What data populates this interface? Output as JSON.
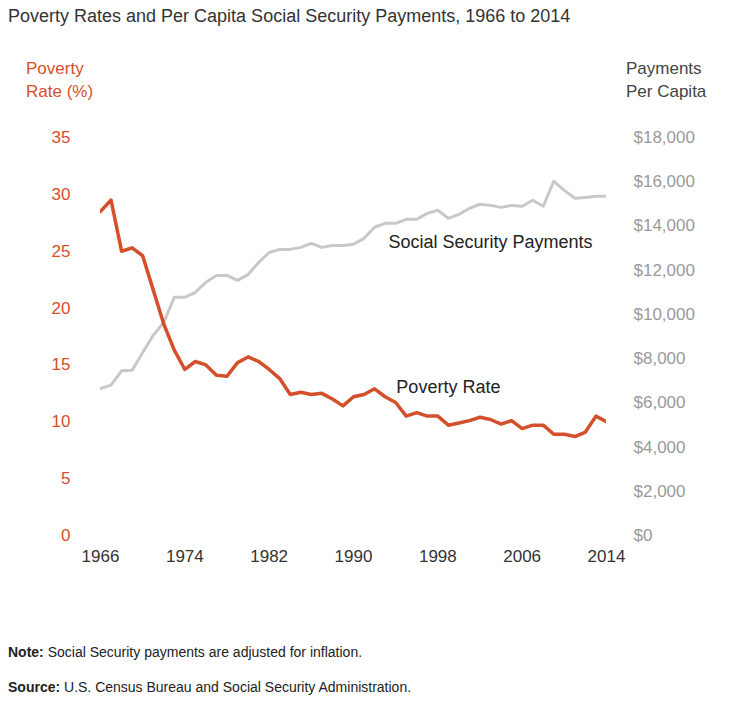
{
  "chart_data": {
    "type": "line",
    "title": "Poverty Rates and Per Capita Social Security Payments, 1966 to 2014",
    "x": [
      1966,
      1967,
      1968,
      1969,
      1970,
      1971,
      1972,
      1973,
      1974,
      1975,
      1976,
      1977,
      1978,
      1979,
      1980,
      1981,
      1982,
      1983,
      1984,
      1985,
      1986,
      1987,
      1988,
      1989,
      1990,
      1991,
      1992,
      1993,
      1994,
      1995,
      1996,
      1997,
      1998,
      1999,
      2000,
      2001,
      2002,
      2003,
      2004,
      2005,
      2006,
      2007,
      2008,
      2009,
      2010,
      2011,
      2012,
      2013,
      2014
    ],
    "xlim": [
      1966,
      2014
    ],
    "xticks": [
      1966,
      1974,
      1982,
      1990,
      1998,
      2006,
      2014
    ],
    "ylabel": "Poverty Rate (%)",
    "ylim": [
      0,
      35
    ],
    "yticks": [
      0,
      5,
      10,
      15,
      20,
      25,
      30,
      35
    ],
    "y2label": "Payments Per Capita",
    "y2lim": [
      0,
      18000
    ],
    "y2ticks": [
      {
        "value": 0,
        "label": "$0"
      },
      {
        "value": 2000,
        "label": "$2,000"
      },
      {
        "value": 4000,
        "label": "$4,000"
      },
      {
        "value": 6000,
        "label": "$6,000"
      },
      {
        "value": 8000,
        "label": "$8,000"
      },
      {
        "value": 10000,
        "label": "$10,000"
      },
      {
        "value": 12000,
        "label": "$12,000"
      },
      {
        "value": 14000,
        "label": "$14,000"
      },
      {
        "value": 16000,
        "label": "$16,000"
      },
      {
        "value": 18000,
        "label": "$18,000"
      }
    ],
    "grid": false,
    "series": [
      {
        "name": "Social Security Payments",
        "color": "#c8c8c8",
        "axis": "y2",
        "values": [
          6650,
          6800,
          7450,
          7470,
          8280,
          9050,
          9640,
          10770,
          10770,
          11000,
          11450,
          11760,
          11760,
          11540,
          11800,
          12350,
          12800,
          12940,
          12940,
          13030,
          13210,
          13030,
          13120,
          13120,
          13170,
          13440,
          13940,
          14120,
          14120,
          14300,
          14300,
          14570,
          14710,
          14340,
          14520,
          14800,
          14980,
          14930,
          14840,
          14930,
          14890,
          15160,
          14890,
          16020,
          15610,
          15250,
          15290,
          15340,
          15340
        ]
      },
      {
        "name": "Poverty Rate",
        "color": "#d4502b",
        "values": [
          28.5,
          29.5,
          25.0,
          25.3,
          24.6,
          21.6,
          18.6,
          16.3,
          14.6,
          15.3,
          15.0,
          14.1,
          14.0,
          15.2,
          15.7,
          15.3,
          14.6,
          13.8,
          12.4,
          12.6,
          12.4,
          12.5,
          12.0,
          11.4,
          12.2,
          12.4,
          12.9,
          12.2,
          11.7,
          10.5,
          10.8,
          10.5,
          10.5,
          9.7,
          9.9,
          10.1,
          10.4,
          10.2,
          9.8,
          10.1,
          9.4,
          9.7,
          9.7,
          8.9,
          8.9,
          8.7,
          9.1,
          10.5,
          10.0
        ]
      }
    ],
    "notes": [
      {
        "label": "Note:",
        "text": "Social Security payments are adjusted for inflation."
      },
      {
        "label": "Source:",
        "text": "U.S. Census Bureau and Social Security Administration."
      }
    ]
  }
}
